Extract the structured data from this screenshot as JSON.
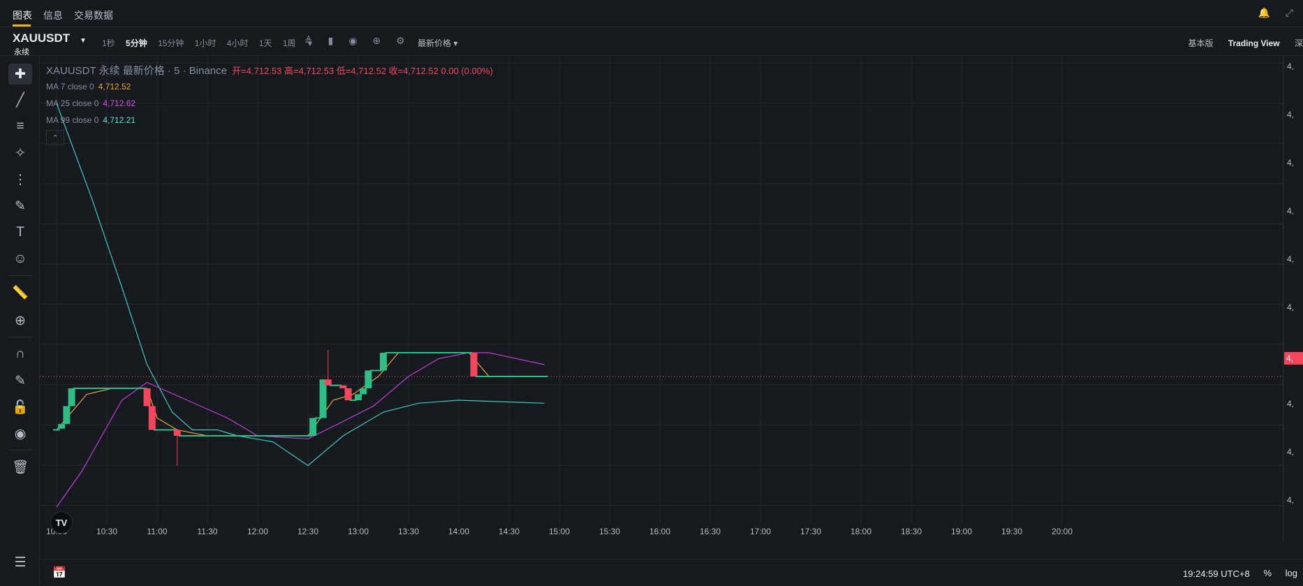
{
  "tabs": [
    {
      "label": "图表",
      "active": true
    },
    {
      "label": "信息",
      "active": false
    },
    {
      "label": "交易数据",
      "active": false
    }
  ],
  "toolbar": {
    "symbol": "XAUUSDT",
    "symbol_sub": "永续",
    "intervals": [
      {
        "label": "1秒",
        "active": false
      },
      {
        "label": "5分钟",
        "active": true
      },
      {
        "label": "15分钟",
        "active": false
      },
      {
        "label": "1小时",
        "active": false
      },
      {
        "label": "4小时",
        "active": false
      },
      {
        "label": "1天",
        "active": false
      },
      {
        "label": "1周",
        "active": false
      }
    ],
    "price_type": "最新价格",
    "basic": "基本版",
    "tradingview": "Trading View",
    "depth": "深"
  },
  "legend": {
    "symbol_line": "XAUUSDT 永续 最新价格 · 5 · Binance",
    "open": "开=4,712.53",
    "high": "高=4,712.53",
    "low": "低=4,712.52",
    "close": "收=4,712.52",
    "change": "0.00 (0.00%)",
    "ma7_label": "MA 7 close 0",
    "ma7_value": "4,712.52",
    "ma25_label": "MA 25 close 0",
    "ma25_value": "4,712.62",
    "ma99_label": "MA 99 close 0",
    "ma99_value": "4,712.21"
  },
  "price_axis": {
    "tick_prefix": "4,",
    "current_tag": "4,"
  },
  "bottom": {
    "time": "19:24:59 UTC+8",
    "percent": "%",
    "log": "log"
  },
  "colors": {
    "up": "#2ebd85",
    "down": "#f6465d",
    "ma7": "#e8a33d",
    "ma25": "#c23fd6",
    "ma99": "#3fc9c1",
    "grid": "#252a31",
    "background": "#161a1e"
  },
  "chart_data": {
    "type": "candlestick",
    "x_labels": [
      "10:00",
      "10:30",
      "11:00",
      "11:30",
      "12:00",
      "12:30",
      "13:00",
      "13:30",
      "14:00",
      "14:30",
      "15:00",
      "15:30",
      "16:00",
      "16:30",
      "17:00",
      "17:30",
      "18:00",
      "18:30",
      "19:00",
      "19:30",
      "20:00"
    ],
    "candles": [
      {
        "x": 0.0,
        "o": 0.1,
        "c": 0.1,
        "h": 0.1,
        "l": 0.1
      },
      {
        "x": 0.1,
        "o": 0.12,
        "c": 0.2,
        "h": 0.2,
        "l": 0.12
      },
      {
        "x": 0.2,
        "o": 0.2,
        "c": 0.5,
        "h": 0.5,
        "l": 0.2
      },
      {
        "x": 0.3,
        "o": 0.5,
        "c": 0.8,
        "h": 0.8,
        "l": 0.5
      },
      {
        "x": 0.4,
        "o": 0.8,
        "c": 0.8,
        "h": 0.8,
        "l": 0.8
      },
      {
        "x": 0.5,
        "o": 0.8,
        "c": 0.8,
        "h": 0.8,
        "l": 0.8
      },
      {
        "x": 0.6,
        "o": 0.8,
        "c": 0.8,
        "h": 0.8,
        "l": 0.8
      },
      {
        "x": 0.7,
        "o": 0.8,
        "c": 0.8,
        "h": 0.8,
        "l": 0.8
      },
      {
        "x": 0.8,
        "o": 0.8,
        "c": 0.8,
        "h": 0.8,
        "l": 0.8
      },
      {
        "x": 0.9,
        "o": 0.8,
        "c": 0.8,
        "h": 0.8,
        "l": 0.8
      },
      {
        "x": 1.0,
        "o": 0.8,
        "c": 0.8,
        "h": 0.8,
        "l": 0.8
      },
      {
        "x": 1.1,
        "o": 0.8,
        "c": 0.8,
        "h": 0.8,
        "l": 0.8
      },
      {
        "x": 1.2,
        "o": 0.8,
        "c": 0.8,
        "h": 0.8,
        "l": 0.8
      },
      {
        "x": 1.3,
        "o": 0.8,
        "c": 0.8,
        "h": 0.8,
        "l": 0.8
      },
      {
        "x": 1.4,
        "o": 0.8,
        "c": 0.8,
        "h": 0.8,
        "l": 0.8
      },
      {
        "x": 1.5,
        "o": 0.8,
        "c": 0.8,
        "h": 0.8,
        "l": 0.8
      },
      {
        "x": 1.6,
        "o": 0.8,
        "c": 0.8,
        "h": 0.8,
        "l": 0.8
      },
      {
        "x": 1.7,
        "o": 0.8,
        "c": 0.8,
        "h": 0.8,
        "l": 0.8
      },
      {
        "x": 1.8,
        "o": 0.8,
        "c": 0.5,
        "h": 0.8,
        "l": 0.5
      },
      {
        "x": 1.9,
        "o": 0.5,
        "c": 0.1,
        "h": 0.5,
        "l": 0.1
      },
      {
        "x": 2.0,
        "o": 0.1,
        "c": 0.1,
        "h": 0.1,
        "l": 0.1
      },
      {
        "x": 2.1,
        "o": 0.1,
        "c": 0.1,
        "h": 0.1,
        "l": 0.1
      },
      {
        "x": 2.2,
        "o": 0.1,
        "c": 0.1,
        "h": 0.1,
        "l": 0.1
      },
      {
        "x": 2.3,
        "o": 0.1,
        "c": 0.1,
        "h": 0.1,
        "l": 0.1
      },
      {
        "x": 2.4,
        "o": 0.1,
        "c": 0.0,
        "h": 0.1,
        "l": -0.5
      },
      {
        "x": 2.5,
        "o": 0.0,
        "c": 0.0,
        "h": 0.0,
        "l": 0.0
      },
      {
        "x": 2.6,
        "o": 0.0,
        "c": 0.0,
        "h": 0.0,
        "l": 0.0
      },
      {
        "x": 2.7,
        "o": 0.0,
        "c": 0.0,
        "h": 0.0,
        "l": 0.0
      },
      {
        "x": 2.8,
        "o": 0.0,
        "c": 0.0,
        "h": 0.0,
        "l": 0.0
      },
      {
        "x": 2.9,
        "o": 0.0,
        "c": 0.0,
        "h": 0.0,
        "l": 0.0
      },
      {
        "x": 3.0,
        "o": 0.0,
        "c": 0.0,
        "h": 0.0,
        "l": 0.0
      },
      {
        "x": 3.1,
        "o": 0.0,
        "c": 0.0,
        "h": 0.0,
        "l": 0.0
      },
      {
        "x": 3.2,
        "o": 0.0,
        "c": 0.0,
        "h": 0.0,
        "l": 0.0
      },
      {
        "x": 3.3,
        "o": 0.0,
        "c": 0.0,
        "h": 0.0,
        "l": 0.0
      },
      {
        "x": 3.4,
        "o": 0.0,
        "c": 0.0,
        "h": 0.0,
        "l": 0.0
      },
      {
        "x": 3.5,
        "o": 0.0,
        "c": 0.0,
        "h": 0.0,
        "l": 0.0
      },
      {
        "x": 3.6,
        "o": 0.0,
        "c": 0.0,
        "h": 0.0,
        "l": 0.0
      },
      {
        "x": 3.7,
        "o": 0.0,
        "c": 0.0,
        "h": 0.0,
        "l": 0.0
      },
      {
        "x": 3.8,
        "o": 0.0,
        "c": 0.0,
        "h": 0.0,
        "l": 0.0
      },
      {
        "x": 3.9,
        "o": 0.0,
        "c": 0.0,
        "h": 0.0,
        "l": 0.0
      },
      {
        "x": 4.0,
        "o": 0.0,
        "c": 0.0,
        "h": 0.0,
        "l": 0.0
      },
      {
        "x": 4.1,
        "o": 0.0,
        "c": 0.0,
        "h": 0.0,
        "l": 0.0
      },
      {
        "x": 4.2,
        "o": 0.0,
        "c": 0.0,
        "h": 0.0,
        "l": 0.0
      },
      {
        "x": 4.3,
        "o": 0.0,
        "c": 0.0,
        "h": 0.0,
        "l": 0.0
      },
      {
        "x": 4.4,
        "o": 0.0,
        "c": 0.0,
        "h": 0.0,
        "l": 0.0
      },
      {
        "x": 4.5,
        "o": 0.0,
        "c": 0.0,
        "h": 0.0,
        "l": 0.0
      },
      {
        "x": 4.6,
        "o": 0.0,
        "c": 0.0,
        "h": 0.0,
        "l": 0.0
      },
      {
        "x": 4.7,
        "o": 0.0,
        "c": 0.0,
        "h": 0.0,
        "l": 0.0
      },
      {
        "x": 4.8,
        "o": 0.0,
        "c": 0.0,
        "h": 0.0,
        "l": 0.0
      },
      {
        "x": 4.9,
        "o": 0.0,
        "c": 0.0,
        "h": 0.0,
        "l": 0.0
      },
      {
        "x": 5.0,
        "o": 0.0,
        "c": 0.0,
        "h": 0.0,
        "l": 0.0
      },
      {
        "x": 5.1,
        "o": 0.0,
        "c": 0.3,
        "h": 0.3,
        "l": 0.0
      },
      {
        "x": 5.2,
        "o": 0.3,
        "c": 0.3,
        "h": 0.3,
        "l": 0.3
      },
      {
        "x": 5.3,
        "o": 0.3,
        "c": 0.95,
        "h": 0.95,
        "l": 0.3
      },
      {
        "x": 5.4,
        "o": 0.95,
        "c": 0.85,
        "h": 1.45,
        "l": 0.85
      },
      {
        "x": 5.5,
        "o": 0.85,
        "c": 0.85,
        "h": 0.85,
        "l": 0.85
      },
      {
        "x": 5.6,
        "o": 0.85,
        "c": 0.85,
        "h": 0.85,
        "l": 0.85
      },
      {
        "x": 5.7,
        "o": 0.85,
        "c": 0.8,
        "h": 0.85,
        "l": 0.8
      },
      {
        "x": 5.8,
        "o": 0.8,
        "c": 0.6,
        "h": 0.8,
        "l": 0.6
      },
      {
        "x": 5.9,
        "o": 0.6,
        "c": 0.6,
        "h": 0.6,
        "l": 0.6
      },
      {
        "x": 6.0,
        "o": 0.6,
        "c": 0.7,
        "h": 0.7,
        "l": 0.6
      },
      {
        "x": 6.1,
        "o": 0.7,
        "c": 0.8,
        "h": 0.8,
        "l": 0.7
      },
      {
        "x": 6.2,
        "o": 0.8,
        "c": 1.1,
        "h": 1.1,
        "l": 0.8
      },
      {
        "x": 6.3,
        "o": 1.1,
        "c": 1.1,
        "h": 1.1,
        "l": 1.1
      },
      {
        "x": 6.4,
        "o": 1.1,
        "c": 1.1,
        "h": 1.1,
        "l": 1.1
      },
      {
        "x": 6.5,
        "o": 1.1,
        "c": 1.4,
        "h": 1.4,
        "l": 1.1
      },
      {
        "x": 6.6,
        "o": 1.4,
        "c": 1.4,
        "h": 1.4,
        "l": 1.4
      },
      {
        "x": 6.7,
        "o": 1.4,
        "c": 1.4,
        "h": 1.4,
        "l": 1.4
      },
      {
        "x": 6.8,
        "o": 1.4,
        "c": 1.4,
        "h": 1.4,
        "l": 1.4
      },
      {
        "x": 6.9,
        "o": 1.4,
        "c": 1.4,
        "h": 1.4,
        "l": 1.4
      },
      {
        "x": 7.0,
        "o": 1.4,
        "c": 1.4,
        "h": 1.4,
        "l": 1.4
      },
      {
        "x": 7.1,
        "o": 1.4,
        "c": 1.4,
        "h": 1.4,
        "l": 1.4
      },
      {
        "x": 7.2,
        "o": 1.4,
        "c": 1.4,
        "h": 1.4,
        "l": 1.4
      },
      {
        "x": 7.3,
        "o": 1.4,
        "c": 1.4,
        "h": 1.4,
        "l": 1.4
      },
      {
        "x": 7.4,
        "o": 1.4,
        "c": 1.4,
        "h": 1.4,
        "l": 1.4
      },
      {
        "x": 7.5,
        "o": 1.4,
        "c": 1.4,
        "h": 1.4,
        "l": 1.4
      },
      {
        "x": 7.6,
        "o": 1.4,
        "c": 1.4,
        "h": 1.4,
        "l": 1.4
      },
      {
        "x": 7.7,
        "o": 1.4,
        "c": 1.4,
        "h": 1.4,
        "l": 1.4
      },
      {
        "x": 7.8,
        "o": 1.4,
        "c": 1.4,
        "h": 1.4,
        "l": 1.4
      },
      {
        "x": 7.9,
        "o": 1.4,
        "c": 1.4,
        "h": 1.4,
        "l": 1.4
      },
      {
        "x": 8.0,
        "o": 1.4,
        "c": 1.4,
        "h": 1.4,
        "l": 1.4
      },
      {
        "x": 8.1,
        "o": 1.4,
        "c": 1.4,
        "h": 1.4,
        "l": 1.4
      },
      {
        "x": 8.2,
        "o": 1.4,
        "c": 1.4,
        "h": 1.4,
        "l": 1.4
      },
      {
        "x": 8.3,
        "o": 1.4,
        "c": 1.0,
        "h": 1.4,
        "l": 1.0
      },
      {
        "x": 8.4,
        "o": 1.0,
        "c": 1.0,
        "h": 1.0,
        "l": 1.0
      },
      {
        "x": 8.5,
        "o": 1.0,
        "c": 1.0,
        "h": 1.0,
        "l": 1.0
      },
      {
        "x": 8.6,
        "o": 1.0,
        "c": 1.0,
        "h": 1.0,
        "l": 1.0
      },
      {
        "x": 8.7,
        "o": 1.0,
        "c": 1.0,
        "h": 1.0,
        "l": 1.0
      },
      {
        "x": 8.8,
        "o": 1.0,
        "c": 1.0,
        "h": 1.0,
        "l": 1.0
      },
      {
        "x": 8.9,
        "o": 1.0,
        "c": 1.0,
        "h": 1.0,
        "l": 1.0
      },
      {
        "x": 9.0,
        "o": 1.0,
        "c": 1.0,
        "h": 1.0,
        "l": 1.0
      },
      {
        "x": 9.1,
        "o": 1.0,
        "c": 1.0,
        "h": 1.0,
        "l": 1.0
      },
      {
        "x": 9.2,
        "o": 1.0,
        "c": 1.0,
        "h": 1.0,
        "l": 1.0
      },
      {
        "x": 9.3,
        "o": 1.0,
        "c": 1.0,
        "h": 1.0,
        "l": 1.0
      },
      {
        "x": 9.4,
        "o": 1.0,
        "c": 1.0,
        "h": 1.0,
        "l": 1.0
      },
      {
        "x": 9.5,
        "o": 1.0,
        "c": 1.0,
        "h": 1.0,
        "l": 1.0
      },
      {
        "x": 9.6,
        "o": 1.0,
        "c": 1.0,
        "h": 1.0,
        "l": 1.0
      },
      {
        "x": 9.7,
        "o": 1.0,
        "c": 1.0,
        "h": 1.0,
        "l": 1.0
      }
    ],
    "ma7": [
      [
        0,
        0.1
      ],
      [
        0.6,
        0.7
      ],
      [
        1.1,
        0.8
      ],
      [
        1.8,
        0.8
      ],
      [
        2.0,
        0.3
      ],
      [
        2.4,
        0.1
      ],
      [
        3.0,
        0.0
      ],
      [
        5.0,
        0.0
      ],
      [
        5.5,
        0.6
      ],
      [
        5.9,
        0.7
      ],
      [
        6.4,
        1.0
      ],
      [
        6.8,
        1.4
      ],
      [
        8.2,
        1.4
      ],
      [
        8.6,
        1.0
      ],
      [
        9.7,
        1.0
      ]
    ],
    "ma25": [
      [
        0,
        -1.2
      ],
      [
        0.5,
        -0.6
      ],
      [
        1.3,
        0.6
      ],
      [
        1.8,
        0.9
      ],
      [
        2.6,
        0.6
      ],
      [
        3.4,
        0.3
      ],
      [
        4.0,
        0.0
      ],
      [
        5.0,
        -0.05
      ],
      [
        5.6,
        0.2
      ],
      [
        6.3,
        0.5
      ],
      [
        7.0,
        1.0
      ],
      [
        7.6,
        1.3
      ],
      [
        8.2,
        1.4
      ],
      [
        8.6,
        1.4
      ],
      [
        9.7,
        1.2
      ]
    ],
    "ma99": [
      [
        0,
        5.6
      ],
      [
        0.7,
        4.0
      ],
      [
        1.3,
        2.5
      ],
      [
        1.8,
        1.2
      ],
      [
        2.3,
        0.4
      ],
      [
        2.7,
        0.1
      ],
      [
        3.2,
        0.1
      ],
      [
        3.6,
        0.0
      ],
      [
        4.3,
        -0.1
      ],
      [
        5.0,
        -0.5
      ],
      [
        5.7,
        0.0
      ],
      [
        6.5,
        0.4
      ],
      [
        7.2,
        0.55
      ],
      [
        8.0,
        0.6
      ],
      [
        9.7,
        0.55
      ]
    ],
    "ylim": [
      -1.6,
      6.4
    ],
    "current_price_level": 1.0
  }
}
